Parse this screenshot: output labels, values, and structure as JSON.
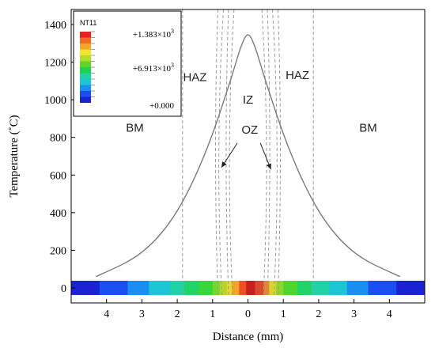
{
  "chart_data": {
    "type": "line",
    "title": "",
    "xlabel": "Distance (mm)",
    "ylabel": "Temperature (˚C)",
    "xlim": [
      -5.0,
      5.0
    ],
    "ylim": [
      -80,
      1480
    ],
    "x_ticks": [
      -4,
      -3,
      -2,
      -1,
      0,
      1,
      2,
      3,
      4
    ],
    "x_tick_labels": [
      "4",
      "3",
      "2",
      "1",
      "0",
      "1",
      "2",
      "3",
      "4"
    ],
    "y_ticks": [
      0,
      200,
      400,
      600,
      800,
      1000,
      1200,
      1400
    ],
    "y_tick_labels": [
      "0",
      "200",
      "400",
      "600",
      "800",
      "1000",
      "1200",
      "1400"
    ],
    "grid": false,
    "series": [
      {
        "x": [
          -4.3,
          -3.5,
          -3.0,
          -2.5,
          -2.0,
          -1.5,
          -1.0,
          -0.5,
          -0.2,
          0.0,
          0.2,
          0.5,
          1.0,
          1.5,
          2.0,
          2.5,
          3.0,
          3.5,
          4.3
        ],
        "y": [
          60,
          130,
          190,
          280,
          410,
          590,
          820,
          1100,
          1280,
          1345,
          1280,
          1100,
          820,
          590,
          410,
          280,
          190,
          130,
          60
        ]
      }
    ],
    "boundaries_mm": [
      -1.85,
      -0.85,
      -0.55,
      0.55,
      0.85,
      1.85
    ],
    "region_labels": [
      {
        "text": "BM",
        "x": -3.2,
        "y": 830
      },
      {
        "text": "HAZ",
        "x": -1.5,
        "y": 1100
      },
      {
        "text": "IZ",
        "x": 0.0,
        "y": 980
      },
      {
        "text": "HAZ",
        "x": 1.4,
        "y": 1110
      },
      {
        "text": "OZ",
        "x": 0.05,
        "y": 820
      },
      {
        "text": "BM",
        "x": 3.4,
        "y": 830
      }
    ],
    "annotation_arrows": [
      {
        "from_x": -0.3,
        "from_y": 770,
        "to_x": -0.75,
        "to_y": 640
      },
      {
        "from_x": 0.35,
        "from_y": 770,
        "to_x": 0.65,
        "to_y": 630
      }
    ],
    "color_strip": {
      "y_value": 0,
      "x_from": -5.0,
      "x_to": 5.0,
      "segments": [
        {
          "x0": -5.0,
          "x1": -4.2,
          "color": "#1a22d2"
        },
        {
          "x0": -4.2,
          "x1": -3.4,
          "color": "#1a4ef0"
        },
        {
          "x0": -3.4,
          "x1": -2.8,
          "color": "#1b8ff1"
        },
        {
          "x0": -2.8,
          "x1": -2.2,
          "color": "#1cc6d6"
        },
        {
          "x0": -2.2,
          "x1": -1.8,
          "color": "#1fd3a6"
        },
        {
          "x0": -1.8,
          "x1": -1.4,
          "color": "#22d467"
        },
        {
          "x0": -1.4,
          "x1": -1.0,
          "color": "#38d53c"
        },
        {
          "x0": -1.0,
          "x1": -0.8,
          "color": "#73d82a"
        },
        {
          "x0": -0.8,
          "x1": -0.6,
          "color": "#b4d52a"
        },
        {
          "x0": -0.6,
          "x1": -0.45,
          "color": "#ead62a"
        },
        {
          "x0": -0.45,
          "x1": -0.25,
          "color": "#f5a42a"
        },
        {
          "x0": -0.25,
          "x1": -0.05,
          "color": "#ee5024"
        },
        {
          "x0": -0.05,
          "x1": 0.2,
          "color": "#c81f1f"
        },
        {
          "x0": 0.2,
          "x1": 0.45,
          "color": "#d9492a"
        },
        {
          "x0": 0.45,
          "x1": 0.6,
          "color": "#e8842a"
        },
        {
          "x0": 0.6,
          "x1": 0.8,
          "color": "#d8d42a"
        },
        {
          "x0": 0.8,
          "x1": 1.0,
          "color": "#8cd62a"
        },
        {
          "x0": 1.0,
          "x1": 1.4,
          "color": "#4fd52e"
        },
        {
          "x0": 1.4,
          "x1": 1.8,
          "color": "#22d467"
        },
        {
          "x0": 1.8,
          "x1": 2.3,
          "color": "#1fd3a6"
        },
        {
          "x0": 2.3,
          "x1": 2.8,
          "color": "#1cc6d6"
        },
        {
          "x0": 2.8,
          "x1": 3.4,
          "color": "#1b8ff1"
        },
        {
          "x0": 3.4,
          "x1": 4.2,
          "color": "#1a4ef0"
        },
        {
          "x0": 4.2,
          "x1": 5.0,
          "color": "#1a22d2"
        }
      ]
    },
    "legend": {
      "placement": "top-left",
      "title": "NT11",
      "labels": [
        "+1.383×10",
        "+6.913×10",
        "+0.000"
      ],
      "exponents": [
        "3",
        "3",
        ""
      ],
      "colors": [
        "#e8201e",
        "#f06a23",
        "#f6a72a",
        "#efe52a",
        "#b6dc2a",
        "#5fd42a",
        "#20d24a",
        "#1fd3a6",
        "#1cc6d6",
        "#1b8ff1",
        "#1a4ef0",
        "#1a22d2"
      ]
    },
    "colors": {
      "curve": "#7a7a7a",
      "boundary": "#9a9a9a",
      "axis": "#000000"
    }
  }
}
